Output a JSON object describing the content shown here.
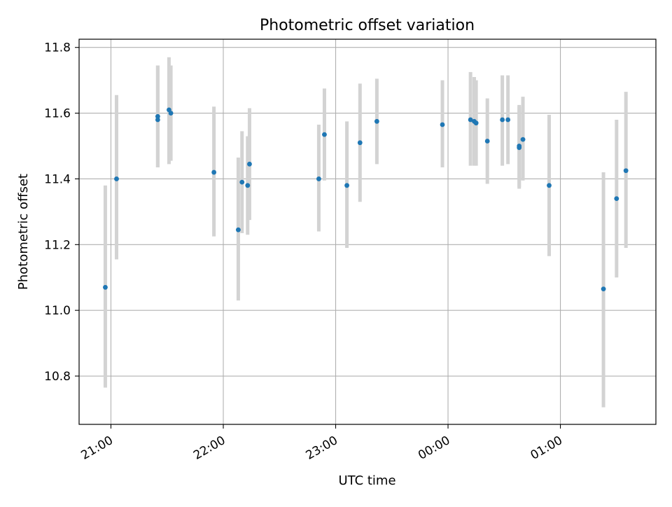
{
  "chart_data": {
    "type": "scatter",
    "title": "Photometric offset variation",
    "xlabel": "UTC time",
    "ylabel": "Photometric offset",
    "x_axis_kind": "time",
    "x_tick_labels": [
      "21:00",
      "22:00",
      "23:00",
      "00:00",
      "01:00"
    ],
    "y_tick_values": [
      10.8,
      11.0,
      11.2,
      11.4,
      11.6,
      11.8
    ],
    "y_tick_labels": [
      "10.8",
      "11.0",
      "11.2",
      "11.4",
      "11.6",
      "11.8"
    ],
    "xlim": [
      "20:43",
      "01:51"
    ],
    "ylim": [
      10.653,
      11.825
    ],
    "grid": true,
    "legend": false,
    "errorbar_color": "#d3d3d3",
    "point_color": "#1f77b4",
    "points": [
      {
        "time": "20:57",
        "y": 11.07,
        "low": 10.765,
        "high": 11.38
      },
      {
        "time": "21:03",
        "y": 11.4,
        "low": 11.155,
        "high": 11.655
      },
      {
        "time": "21:25",
        "y": 11.58,
        "low": 11.435,
        "high": 11.745
      },
      {
        "time": "21:25",
        "y": 11.59,
        "low": 11.435,
        "high": 11.745
      },
      {
        "time": "21:31",
        "y": 11.61,
        "low": 11.445,
        "high": 11.77
      },
      {
        "time": "21:32",
        "y": 11.6,
        "low": 11.455,
        "high": 11.745
      },
      {
        "time": "21:55",
        "y": 11.42,
        "low": 11.225,
        "high": 11.62
      },
      {
        "time": "22:08",
        "y": 11.245,
        "low": 11.03,
        "high": 11.465
      },
      {
        "time": "22:10",
        "y": 11.39,
        "low": 11.235,
        "high": 11.545
      },
      {
        "time": "22:13",
        "y": 11.38,
        "low": 11.23,
        "high": 11.53
      },
      {
        "time": "22:14",
        "y": 11.445,
        "low": 11.275,
        "high": 11.615
      },
      {
        "time": "22:51",
        "y": 11.4,
        "low": 11.24,
        "high": 11.565
      },
      {
        "time": "22:54",
        "y": 11.535,
        "low": 11.395,
        "high": 11.675
      },
      {
        "time": "23:06",
        "y": 11.38,
        "low": 11.19,
        "high": 11.575
      },
      {
        "time": "23:13",
        "y": 11.51,
        "low": 11.33,
        "high": 11.69
      },
      {
        "time": "23:22",
        "y": 11.575,
        "low": 11.445,
        "high": 11.705
      },
      {
        "time": "23:57",
        "y": 11.565,
        "low": 11.435,
        "high": 11.7
      },
      {
        "time": "00:12",
        "y": 11.58,
        "low": 11.44,
        "high": 11.725
      },
      {
        "time": "00:14",
        "y": 11.575,
        "low": 11.44,
        "high": 11.71
      },
      {
        "time": "00:15",
        "y": 11.57,
        "low": 11.44,
        "high": 11.7
      },
      {
        "time": "00:21",
        "y": 11.515,
        "low": 11.385,
        "high": 11.645
      },
      {
        "time": "00:29",
        "y": 11.58,
        "low": 11.44,
        "high": 11.715
      },
      {
        "time": "00:32",
        "y": 11.58,
        "low": 11.445,
        "high": 11.715
      },
      {
        "time": "00:38",
        "y": 11.5,
        "low": 11.37,
        "high": 11.625
      },
      {
        "time": "00:38",
        "y": 11.495,
        "low": 11.375,
        "high": 11.62
      },
      {
        "time": "00:40",
        "y": 11.52,
        "low": 11.395,
        "high": 11.65
      },
      {
        "time": "00:54",
        "y": 11.38,
        "low": 11.165,
        "high": 11.595
      },
      {
        "time": "01:23",
        "y": 11.065,
        "low": 10.705,
        "high": 11.42
      },
      {
        "time": "01:30",
        "y": 11.34,
        "low": 11.1,
        "high": 11.58
      },
      {
        "time": "01:35",
        "y": 11.425,
        "low": 11.19,
        "high": 11.665
      }
    ]
  }
}
